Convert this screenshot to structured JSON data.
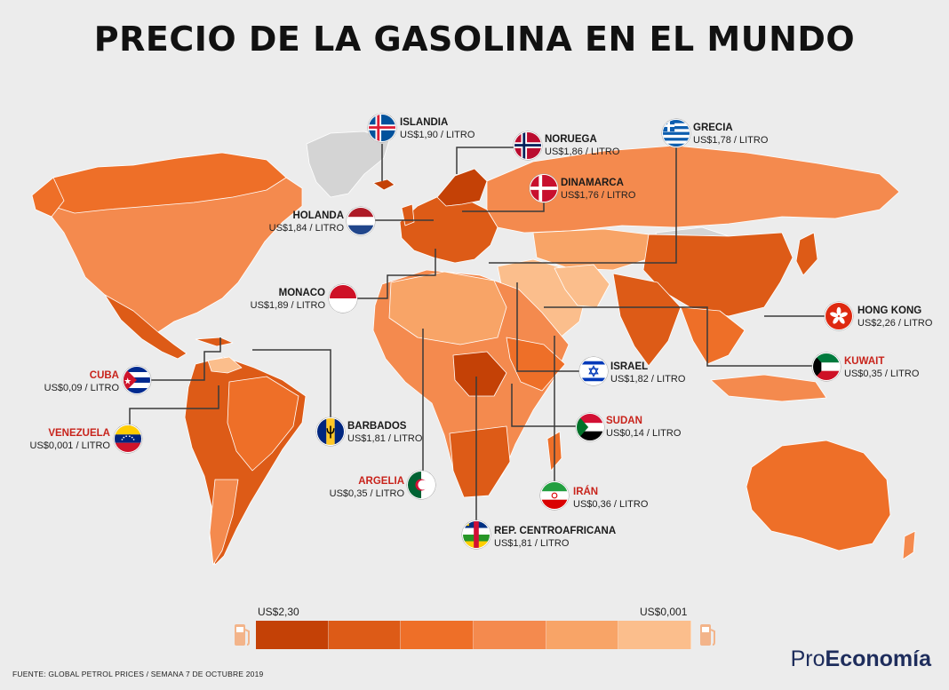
{
  "title": "PRECIO DE LA GASOLINA EN EL MUNDO",
  "countries": [
    {
      "id": "islandia",
      "name": "ISLANDIA",
      "price": "US$1,90 / LITRO",
      "highlight": false
    },
    {
      "id": "noruega",
      "name": "NORUEGA",
      "price": "US$1,86 / LITRO",
      "highlight": false
    },
    {
      "id": "grecia",
      "name": "GRECIA",
      "price": "US$1,78 / LITRO",
      "highlight": false
    },
    {
      "id": "dinamarca",
      "name": "DINAMARCA",
      "price": "US$1,76 / LITRO",
      "highlight": false
    },
    {
      "id": "holanda",
      "name": "HOLANDA",
      "price": "US$1,84 / LITRO",
      "highlight": false
    },
    {
      "id": "monaco",
      "name": "MONACO",
      "price": "US$1,89 / LITRO",
      "highlight": false
    },
    {
      "id": "hongkong",
      "name": "HONG KONG",
      "price": "US$2,26 / LITRO",
      "highlight": false
    },
    {
      "id": "kuwait",
      "name": "KUWAIT",
      "price": "US$0,35 / LITRO",
      "highlight": true
    },
    {
      "id": "israel",
      "name": "ISRAEL",
      "price": "US$1,82 / LITRO",
      "highlight": false
    },
    {
      "id": "cuba",
      "name": "CUBA",
      "price": "US$0,09 / LITRO",
      "highlight": true
    },
    {
      "id": "sudan",
      "name": "SUDAN",
      "price": "US$0,14 / LITRO",
      "highlight": true
    },
    {
      "id": "venezuela",
      "name": "VENEZUELA",
      "price": "US$0,001 / LITRO",
      "highlight": true
    },
    {
      "id": "barbados",
      "name": "BARBADOS",
      "price": "US$1,81 / LITRO",
      "highlight": false
    },
    {
      "id": "argelia",
      "name": "ARGELIA",
      "price": "US$0,35 / LITRO",
      "highlight": true
    },
    {
      "id": "iran",
      "name": "IRÁN",
      "price": "US$0,36 / LITRO",
      "highlight": true
    },
    {
      "id": "rca",
      "name": "REP. CENTROAFRICANA",
      "price": "US$1,81 / LITRO",
      "highlight": false
    }
  ],
  "legend": {
    "max_label": "US$2,30",
    "min_label": "US$0,001",
    "colors": [
      "#c44106",
      "#dd5b17",
      "#ee6f28",
      "#f48a4e",
      "#f8a467",
      "#fbbe8c"
    ]
  },
  "colors": {
    "background": "#ececec",
    "no_data": "#d4d4d4",
    "highlight_text": "#c8231b",
    "brand": "#1e2d5c"
  },
  "footer": "FUENTE: GLOBAL PETROL PRICES / SEMANA 7 DE OCTUBRE 2019",
  "brand": {
    "prefix": "Pro",
    "bold": "Economía"
  }
}
